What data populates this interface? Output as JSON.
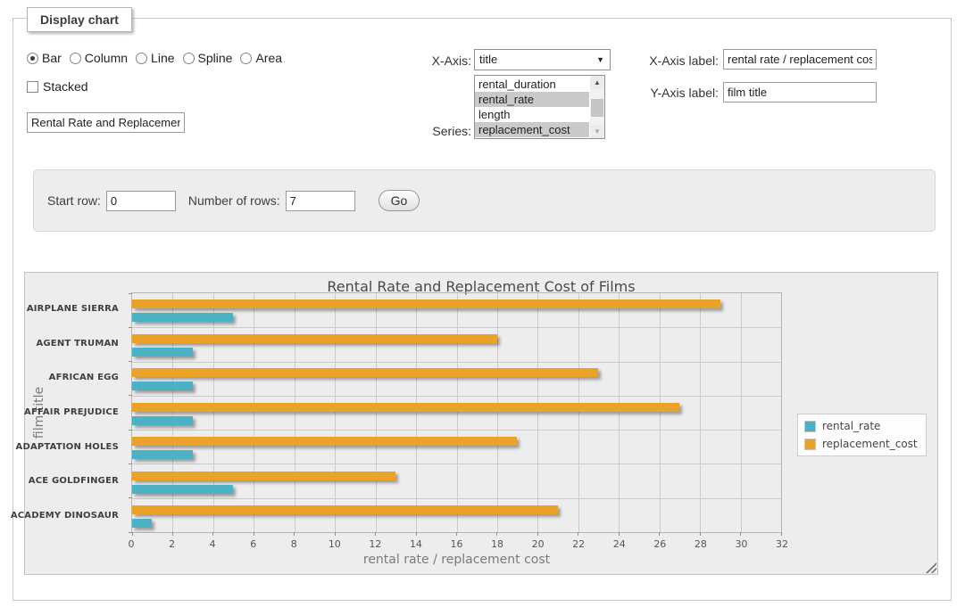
{
  "panel": {
    "legend": "Display chart"
  },
  "controls": {
    "chart_type": {
      "options": [
        {
          "label": "Bar",
          "selected": true
        },
        {
          "label": "Column",
          "selected": false
        },
        {
          "label": "Line",
          "selected": false
        },
        {
          "label": "Spline",
          "selected": false
        },
        {
          "label": "Area",
          "selected": false
        }
      ]
    },
    "stacked": {
      "label": "Stacked",
      "checked": false
    },
    "title_input": {
      "value": "Rental Rate and Replacement Cost of Films"
    },
    "x_axis": {
      "label": "X-Axis:",
      "selected_value": "title"
    },
    "series": {
      "label": "Series:",
      "options": [
        {
          "label": "rental_duration",
          "selected": false
        },
        {
          "label": "rental_rate",
          "selected": true
        },
        {
          "label": "length",
          "selected": false
        },
        {
          "label": "replacement_cost",
          "selected": true
        }
      ]
    },
    "x_axis_label": {
      "label": "X-Axis label:",
      "value": "rental rate / replacement cost"
    },
    "y_axis_label": {
      "label": "Y-Axis label:",
      "value": "film title"
    }
  },
  "row_controls": {
    "start_row_label": "Start row:",
    "start_row_value": "0",
    "num_rows_label": "Number of rows:",
    "num_rows_value": "7",
    "go_label": "Go"
  },
  "chart_data": {
    "type": "bar",
    "orientation": "horizontal",
    "title": "Rental Rate and Replacement Cost of Films",
    "xlabel": "rental rate / replacement cost",
    "ylabel": "film title",
    "xlim": [
      0,
      32
    ],
    "x_tick_step": 2,
    "grid": true,
    "legend_position": "right",
    "plot_background": "#ededed",
    "grid_color": "#cbcbcb",
    "categories_top_to_bottom": [
      "AIRPLANE SIERRA",
      "AGENT TRUMAN",
      "AFRICAN EGG",
      "AFFAIR PREJUDICE",
      "ADAPTATION HOLES",
      "ACE GOLDFINGER",
      "ACADEMY DINOSAUR"
    ],
    "series": [
      {
        "name": "rental_rate",
        "color": "#4bb2c5",
        "values": [
          4.99,
          2.99,
          2.99,
          2.99,
          2.99,
          4.99,
          0.99
        ]
      },
      {
        "name": "replacement_cost",
        "color": "#eaa228",
        "values": [
          28.99,
          17.99,
          22.99,
          26.99,
          18.99,
          12.99,
          20.99
        ]
      }
    ]
  }
}
